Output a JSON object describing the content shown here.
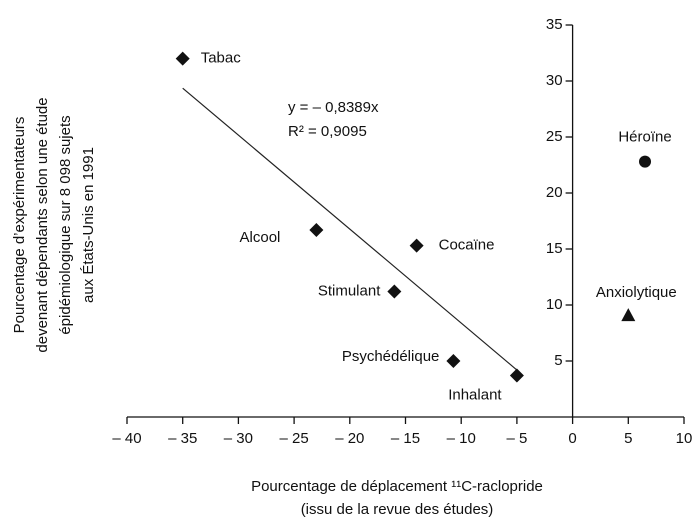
{
  "chart_data": {
    "type": "scatter",
    "x_label": "Pourcentage de déplacement ¹¹C-raclopride",
    "x_label_2": "(issu de la revue des études)",
    "y_label": [
      "Pourcentage d’expérimentateurs",
      "devenant dépendants selon une étude",
      "épidémiologique sur 8 098 sujets",
      "aux États-Unis en 1991"
    ],
    "equation": "y = – 0,8389x",
    "r2": "R² = 0,9095",
    "labels": [
      "Tabac",
      "Alcool",
      "Cocaïne",
      "Stimulant",
      "Psychédélique",
      "Inhalant",
      "Héroïne",
      "Anxiolytique"
    ],
    "markers": [
      "diamond",
      "diamond",
      "diamond",
      "diamond",
      "diamond",
      "diamond",
      "circle",
      "triangle"
    ],
    "color": "#111111",
    "x": [
      -35,
      -23,
      -14,
      -16,
      -10.7,
      -5,
      6.5,
      5
    ],
    "values": [
      32,
      16.7,
      15.3,
      11.2,
      5,
      3.7,
      22.8,
      9.1
    ],
    "trendline": {
      "slope": -0.8389,
      "xlim": [
        -35,
        -5
      ]
    },
    "xlim": [
      -40,
      10
    ],
    "xticks": [
      {
        "value": -40,
        "label": "– 40"
      },
      {
        "value": -35,
        "label": "– 35"
      },
      {
        "value": -30,
        "label": "– 30"
      },
      {
        "value": -25,
        "label": "– 25"
      },
      {
        "value": -20,
        "label": "– 20"
      },
      {
        "value": -15,
        "label": "– 15"
      },
      {
        "value": -10,
        "label": "– 10"
      },
      {
        "value": -5,
        "label": "– 5"
      },
      0,
      5,
      10
    ],
    "ylim": [
      0,
      35
    ],
    "yticks": [
      5,
      10,
      15,
      20,
      25,
      30,
      35
    ]
  }
}
